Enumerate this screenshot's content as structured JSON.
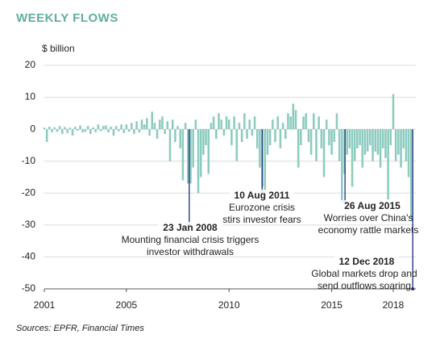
{
  "chart_data": {
    "type": "bar",
    "title": "WEEKLY FLOWS",
    "y_label": "$ billion",
    "source": "Sources: EPFR, Financial Times",
    "color": "#8ccbbf",
    "grid": true,
    "xlim": [
      2001,
      2019.1
    ],
    "xticks": [
      2001,
      2005,
      2010,
      2015,
      2018
    ],
    "ylim": [
      -50,
      20
    ],
    "yticks": [
      20,
      10,
      0,
      -10,
      -20,
      -30,
      -40,
      -50
    ],
    "x_start": 2001,
    "x_step": 0.125,
    "values": [
      0.5,
      -4,
      0.8,
      -1,
      0.6,
      -0.8,
      1,
      -1.5,
      0.7,
      -1.2,
      0.5,
      -2,
      0.8,
      -0.5,
      1.2,
      -1,
      -0.8,
      1,
      -1.5,
      0.6,
      -1,
      1.5,
      -0.6,
      1,
      1.2,
      -1,
      0.8,
      -2,
      1,
      -0.7,
      1.5,
      -1.2,
      1.5,
      -0.8,
      2,
      -1.5,
      2.5,
      -1,
      3,
      1.5,
      3.5,
      -2,
      5.5,
      2,
      -3,
      3,
      4,
      -1.5,
      2.5,
      -10,
      3,
      -4,
      1,
      -6,
      -16,
      2,
      -17,
      -17,
      -12,
      3,
      -20,
      -15,
      -8,
      -5,
      -14,
      2,
      4,
      -3,
      5,
      3,
      -2,
      4,
      3,
      -5,
      4,
      -10,
      2,
      -4,
      5,
      -3,
      3,
      -2,
      4,
      -6,
      -12,
      -18,
      -20,
      -8,
      -5,
      3,
      -4,
      4,
      -6,
      2,
      -3,
      5,
      4,
      8,
      6,
      -12,
      -5,
      4,
      5,
      -4,
      -8,
      5,
      -10,
      4,
      -6,
      -15,
      3,
      -5,
      -8,
      -4,
      5,
      -10,
      -23,
      -14,
      -8,
      -6,
      -18,
      -10,
      -6,
      -5,
      -12,
      -8,
      -7,
      -5,
      -10,
      -7,
      -8,
      -12,
      -6,
      -9,
      -22,
      -5,
      11,
      -10,
      -8,
      -12,
      -6,
      -10,
      -15,
      -28
    ],
    "annotations": [
      {
        "date": "23 Jan 2008",
        "text": [
          "Mounting financial crisis triggers",
          "investor withdrawals"
        ],
        "x": 2008.06,
        "y": -30
      },
      {
        "date": "10 Aug 2011",
        "text": [
          "Eurozone crisis",
          "stirs investor fears"
        ],
        "x": 2011.61,
        "y": -20
      },
      {
        "date": "26 Aug 2015",
        "text": [
          "Worries over China's",
          "economy rattle markets"
        ],
        "x": 2015.65,
        "y": -23
      },
      {
        "date": "12 Dec 2018",
        "text": [
          "Global markets drop and",
          "send outflows soaring"
        ],
        "x": 2018.95,
        "y": -50
      }
    ]
  }
}
